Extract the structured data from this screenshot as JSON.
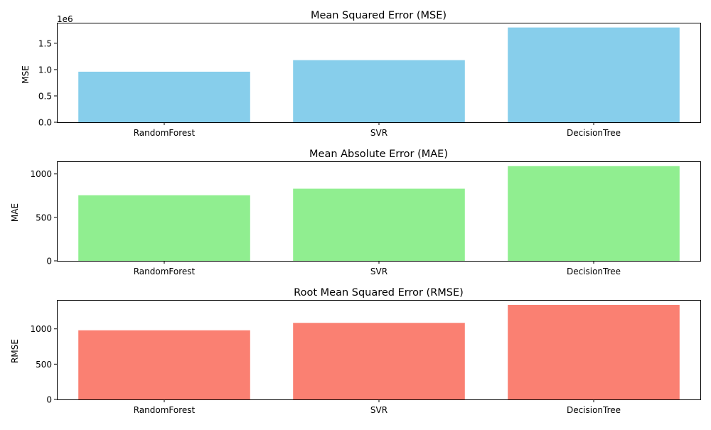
{
  "chart_data": [
    {
      "type": "bar",
      "title": "Mean Squared Error (MSE)",
      "xlabel": "",
      "ylabel": "MSE",
      "categories": [
        "RandomForest",
        "SVR",
        "DecisionTree"
      ],
      "values": [
        960000,
        1180000,
        1800000
      ],
      "ylim": [
        0,
        1890000
      ],
      "yticks": [
        0,
        500000,
        1000000,
        1500000
      ],
      "ytick_labels": [
        "0.0",
        "0.5",
        "1.0",
        "1.5"
      ],
      "offset_text": "1e6",
      "color": "#87ceeb",
      "grid": false
    },
    {
      "type": "bar",
      "title": "Mean Absolute Error (MAE)",
      "xlabel": "",
      "ylabel": "MAE",
      "categories": [
        "RandomForest",
        "SVR",
        "DecisionTree"
      ],
      "values": [
        755,
        830,
        1090
      ],
      "ylim": [
        0,
        1145
      ],
      "yticks": [
        0,
        500,
        1000
      ],
      "ytick_labels": [
        "0",
        "500",
        "1000"
      ],
      "offset_text": "",
      "color": "#90ee90",
      "grid": false
    },
    {
      "type": "bar",
      "title": "Root Mean Squared Error (RMSE)",
      "xlabel": "",
      "ylabel": "RMSE",
      "categories": [
        "RandomForest",
        "SVR",
        "DecisionTree"
      ],
      "values": [
        980,
        1085,
        1340
      ],
      "ylim": [
        0,
        1410
      ],
      "yticks": [
        0,
        500,
        1000
      ],
      "ytick_labels": [
        "0",
        "500",
        "1000"
      ],
      "offset_text": "",
      "color": "#fa8072",
      "grid": false
    }
  ]
}
